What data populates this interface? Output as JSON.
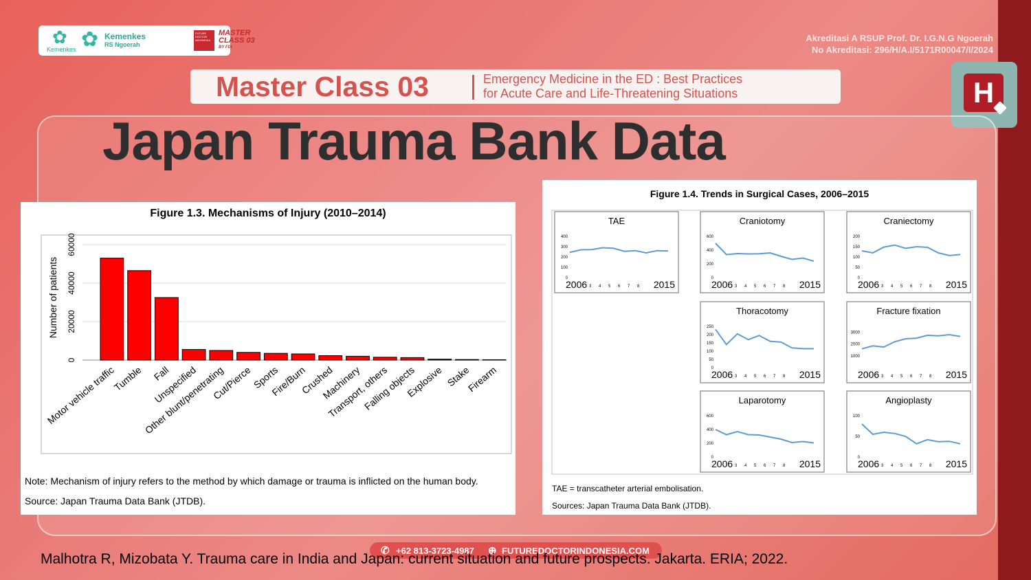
{
  "header": {
    "logo_kemenkes_small": "Kemenkes",
    "logo_kemenkes": "Kemenkes",
    "logo_rs": "RS Ngoerah",
    "logo_fdi": "FUTURE DOCTOR INDONESIA",
    "logo_mc_line1": "MASTER",
    "logo_mc_line2": "CLASS 03",
    "logo_mc_line3": "BY FDI",
    "accreditation_line1": "Akreditasi A RSUP Prof. Dr. I.G.N.G Ngoerah",
    "accreditation_line2": "No Akreditasi: 296/H/A.I/5171R00047/I/2024"
  },
  "banner": {
    "main": "Master Class 03",
    "sub_line1": "Emergency Medicine in the ED : Best Practices",
    "sub_line2": "for Acute Care and Life-Threatening Situations"
  },
  "h_icon": {
    "letter": "H",
    "icon": "hospital-h-icon",
    "color": "#b01d26"
  },
  "slide_title": "Japan Trauma Bank Data",
  "figure_left": {
    "title": "Figure 1.3. Mechanisms of Injury (2010–2014)",
    "note": "Note: Mechanism of injury refers to the method by which damage or trauma is inflicted on the human body.",
    "source": "Source: Japan Trauma Data Bank (JTDB)."
  },
  "figure_right": {
    "title": "Figure 1.4. Trends in Surgical Cases, 2006–2015",
    "note": "TAE = transcatheter arterial embolisation.",
    "source": "Sources: Japan Trauma Data Bank (JTDB)."
  },
  "chart_data": [
    {
      "type": "bar",
      "title": "",
      "xlabel": "",
      "ylabel": "Number of patients",
      "ylim": [
        0,
        65000
      ],
      "yticks": [
        "0",
        "20000",
        "40000",
        "60000"
      ],
      "grid": true,
      "color": "#ff0000",
      "categories": [
        "Motor vehicle traffic",
        "Tumble",
        "Fall",
        "Unspecified",
        "Other blunt/penetrating",
        "Cut/Pierce",
        "Sports",
        "Fire/Burn",
        "Crushed",
        "Machinery",
        "Transport, others",
        "Falling objects",
        "Explosive",
        "Stake",
        "Firearm"
      ],
      "values": [
        53000,
        46500,
        32500,
        5500,
        5000,
        4000,
        3500,
        3200,
        2300,
        2000,
        1500,
        1300,
        500,
        300,
        200
      ]
    },
    {
      "type": "line",
      "color": "#5b9bd5",
      "x": [
        "2006",
        "3",
        "4",
        "5",
        "6",
        "7",
        "8",
        "2015"
      ],
      "x_values": [
        2006,
        2007,
        2008,
        2009,
        2010,
        2011,
        2012,
        2013,
        2014,
        2015
      ],
      "panels": [
        {
          "name": "TAE",
          "yticks": [
            "0",
            "100",
            "200",
            "300",
            "400"
          ],
          "ylim": [
            0,
            400
          ],
          "values": [
            245,
            270,
            272,
            290,
            285,
            255,
            262,
            240,
            262,
            258
          ]
        },
        {
          "name": "Craniotomy",
          "yticks": [
            "0",
            "200",
            "400",
            "600"
          ],
          "ylim": [
            0,
            600
          ],
          "values": [
            500,
            335,
            350,
            345,
            348,
            360,
            310,
            265,
            285,
            240
          ]
        },
        {
          "name": "Craniectomy",
          "yticks": [
            "0",
            "50",
            "100",
            "150",
            "200"
          ],
          "ylim": [
            0,
            200
          ],
          "values": [
            130,
            120,
            148,
            158,
            142,
            150,
            147,
            120,
            107,
            112
          ]
        },
        {
          "name": "Thoracotomy",
          "yticks": [
            "0",
            "50",
            "100",
            "150",
            "200",
            "250"
          ],
          "ylim": [
            0,
            250
          ],
          "values": [
            232,
            140,
            205,
            170,
            195,
            160,
            155,
            120,
            115,
            115
          ]
        },
        {
          "name": "Fracture fixation",
          "yticks": [
            "1000",
            "2000",
            "3000"
          ],
          "ylim": [
            0,
            3500
          ],
          "values": [
            1600,
            1850,
            1750,
            2200,
            2450,
            2500,
            2750,
            2700,
            2800,
            2650
          ]
        },
        {
          "name": "Laparotomy",
          "yticks": [
            "0",
            "200",
            "400",
            "600"
          ],
          "ylim": [
            0,
            600
          ],
          "values": [
            400,
            325,
            370,
            325,
            320,
            290,
            260,
            210,
            225,
            205
          ]
        },
        {
          "name": "Angioplasty",
          "yticks": [
            "0",
            "50",
            "100"
          ],
          "ylim": [
            0,
            100
          ],
          "values": [
            80,
            55,
            60,
            57,
            50,
            32,
            42,
            37,
            38,
            32
          ]
        }
      ]
    }
  ],
  "footer": {
    "phone": "+62 813-3723-4987",
    "website": "FUTUREDOCTORINDONESIA.COM",
    "phone_icon": "whatsapp-icon",
    "web_icon": "globe-icon"
  },
  "citation": "Malhotra R, Mizobata Y. Trauma care in India and Japan: current situation and future prospects. Jakarta. ERIA; 2022."
}
